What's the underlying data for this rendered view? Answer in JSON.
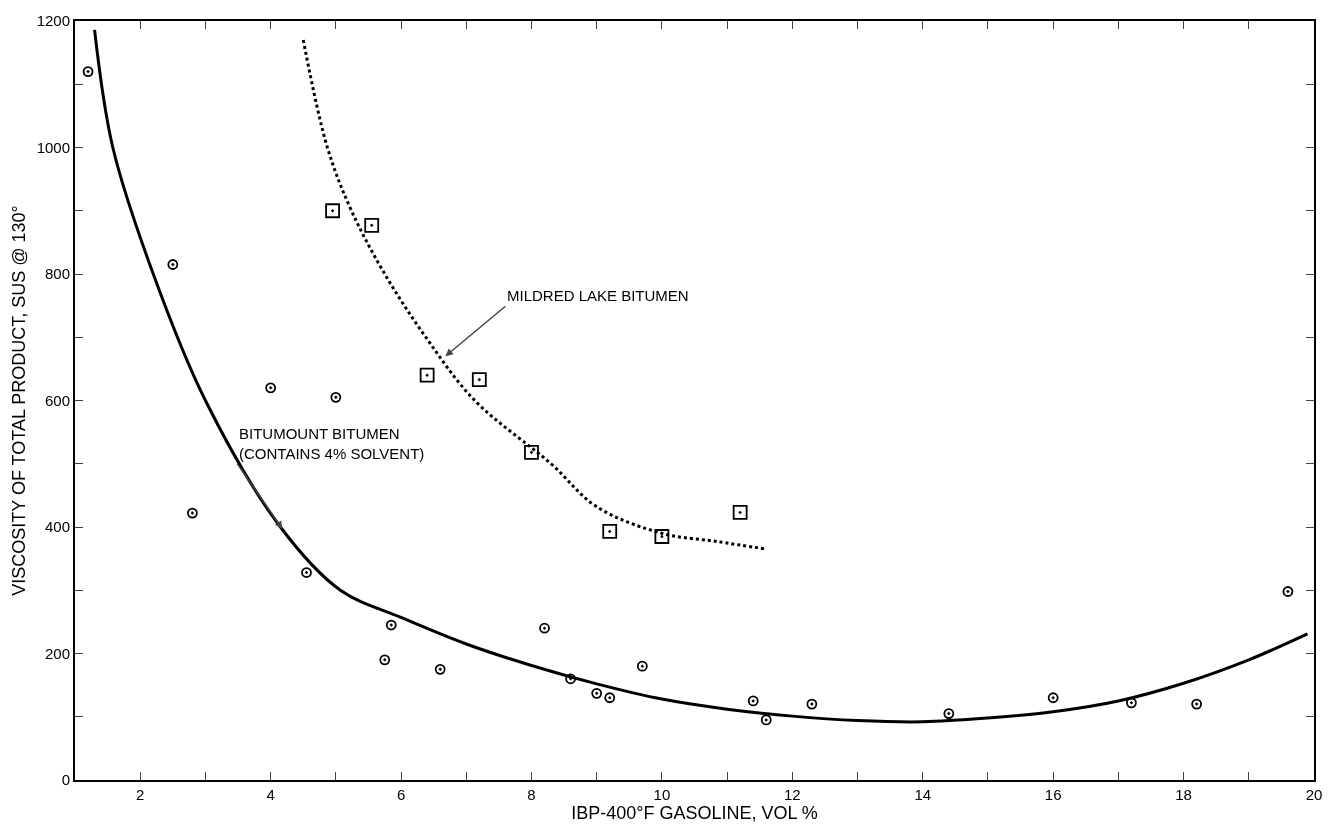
{
  "chart_data": {
    "type": "scatter",
    "xlabel": "IBP-400°F GASOLINE, VOL %",
    "ylabel": "VISCOSITY OF TOTAL PRODUCT, SUS @ 130°",
    "xlim": [
      1,
      20
    ],
    "ylim": [
      0,
      1200
    ],
    "xticks": [
      2,
      {
        "value": 3,
        "label": null
      },
      4,
      {
        "value": 5,
        "label": null
      },
      6,
      {
        "value": 7,
        "label": null
      },
      8,
      {
        "value": 9,
        "label": null
      },
      10,
      {
        "value": 11,
        "label": null
      },
      12,
      {
        "value": 13,
        "label": null
      },
      14,
      {
        "value": 15,
        "label": null
      },
      16,
      {
        "value": 17,
        "label": null
      },
      18,
      {
        "value": 19,
        "label": null
      },
      20
    ],
    "yticks": [
      0,
      {
        "value": 100,
        "label": null
      },
      200,
      {
        "value": 300,
        "label": null
      },
      400,
      {
        "value": 500,
        "label": null
      },
      600,
      {
        "value": 700,
        "label": null
      },
      800,
      {
        "value": 900,
        "label": null
      },
      1000,
      {
        "value": 1100,
        "label": null
      },
      1200
    ],
    "grid": false,
    "series": [
      {
        "marker": "circle",
        "color": "#000000",
        "x": [
          1.2,
          2.5,
          2.8,
          4,
          4.55,
          5,
          5.75,
          5.85,
          6.6,
          8.2,
          8.6,
          9,
          9.2,
          9.7,
          11.4,
          11.6,
          12.3,
          14.4,
          16,
          17.2,
          18.2,
          19.6
        ],
        "values": [
          1120,
          815,
          422,
          620,
          328,
          605,
          190,
          245,
          175,
          240,
          160,
          137,
          130,
          180,
          125,
          95,
          120,
          105,
          130,
          122,
          120,
          298
        ]
      },
      {
        "marker": "square",
        "color": "#000000",
        "x": [
          4.95,
          5.55,
          6.4,
          7.2,
          8,
          9.2,
          10,
          11.2
        ],
        "values": [
          900,
          877,
          640,
          633,
          518,
          393,
          385,
          423
        ]
      },
      {
        "type": "line",
        "line_style": "solid",
        "color": "#000000",
        "x": [
          1.3,
          1.58,
          2.2,
          3.0,
          4.15,
          5.07,
          6,
          7,
          8,
          9,
          10,
          11,
          12,
          13,
          14,
          15,
          16,
          17,
          18,
          19,
          19.9
        ],
        "values": [
          1186,
          1000,
          800,
          600,
          400,
          300,
          257,
          215,
          181,
          152,
          128,
          112,
          101,
          94,
          92,
          98,
          108,
          125,
          153,
          190,
          231
        ]
      },
      {
        "type": "line",
        "line_style": "dotted",
        "color": "#000000",
        "x": [
          4.5,
          4.87,
          5.24,
          5.75,
          6.38,
          7.13,
          8.3,
          9,
          10,
          10.85,
          11.6
        ],
        "values": [
          1170,
          1000,
          900,
          800,
          700,
          600,
          500,
          432,
          390,
          377,
          365
        ]
      }
    ],
    "annotations": [
      {
        "text": "MILDRED LAKE BITUMEN",
        "x": 6.68,
        "y": 670
      },
      {
        "text": "BITUMOUNT BITUMEN\n(CONTAINS 4% SOLVENT)",
        "x": 4.18,
        "y": 397
      }
    ]
  }
}
